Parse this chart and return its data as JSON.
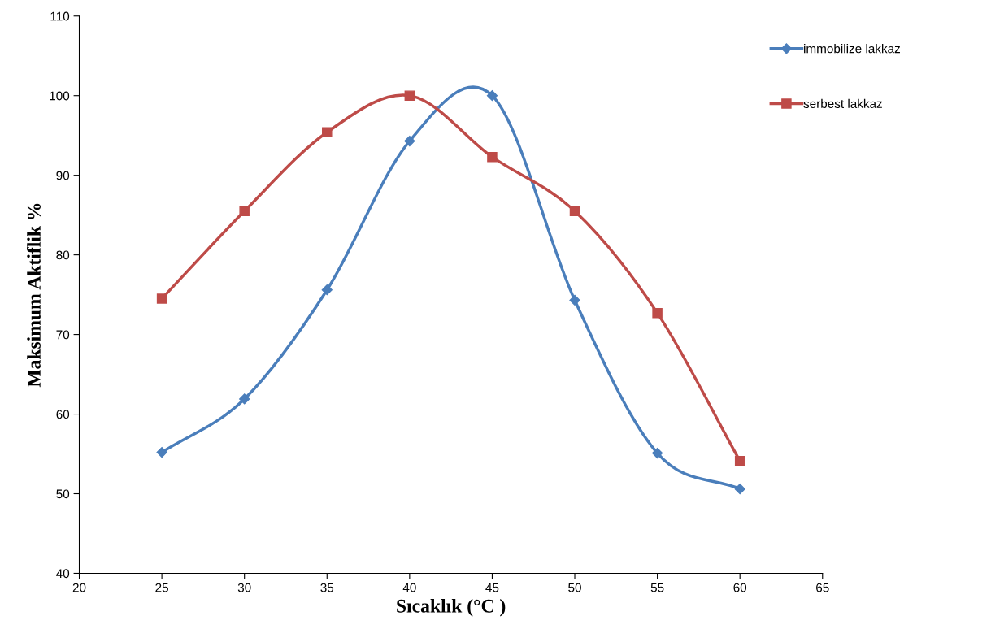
{
  "chart_data": {
    "type": "line",
    "xlabel": "Sıcaklık (°C )",
    "ylabel": "Maksimum Aktiflik %",
    "x": [
      25,
      30,
      35,
      40,
      45,
      50,
      55,
      60
    ],
    "series": [
      {
        "name": "immobilize lakkaz",
        "color": "#4a7ebb",
        "marker": "diamond",
        "values": [
          55.2,
          61.9,
          75.6,
          94.3,
          100,
          74.3,
          55.1,
          50.6
        ]
      },
      {
        "name": "serbest lakkaz",
        "color": "#be4b48",
        "marker": "square",
        "values": [
          74.5,
          85.5,
          95.4,
          100,
          92.3,
          85.5,
          72.7,
          54.1
        ]
      }
    ],
    "xlim": [
      20,
      65
    ],
    "xticks": [
      20,
      25,
      30,
      35,
      40,
      45,
      50,
      55,
      60,
      65
    ],
    "ylim": [
      40,
      110
    ],
    "yticks": [
      40,
      50,
      60,
      70,
      80,
      90,
      100,
      110
    ],
    "legend": "top right",
    "grid": false,
    "line_style": "solid"
  }
}
